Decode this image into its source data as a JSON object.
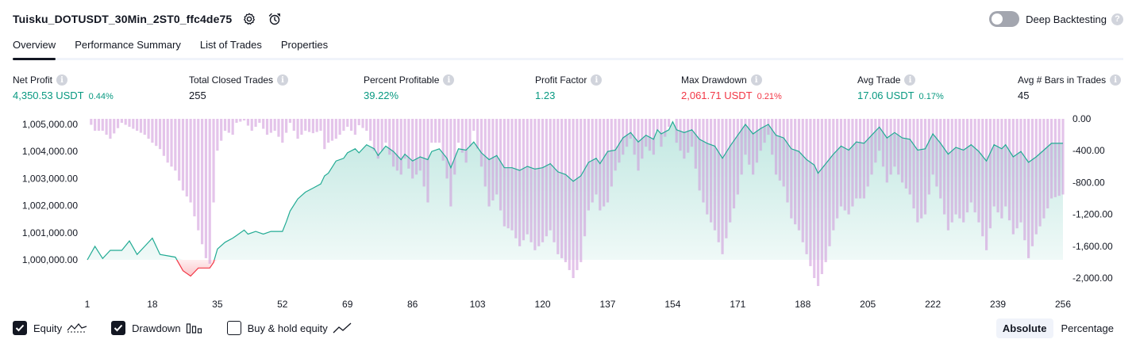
{
  "header": {
    "title": "Tuisku_DOTUSDT_30Min_2ST0_ffc4de75",
    "icons": [
      "gear-icon",
      "alarm-clock-icon"
    ],
    "deep_backtesting_label": "Deep Backtesting",
    "deep_backtesting_enabled": false,
    "help_glyph": "?"
  },
  "tabs": [
    {
      "label": "Overview",
      "active": true
    },
    {
      "label": "Performance Summary",
      "active": false
    },
    {
      "label": "List of Trades",
      "active": false
    },
    {
      "label": "Properties",
      "active": false
    }
  ],
  "metrics": [
    {
      "label": "Net Profit",
      "value": "4,350.53 USDT",
      "pct": "0.44%",
      "color": "#089981"
    },
    {
      "label": "Total Closed Trades",
      "value": "255",
      "pct": "",
      "color": "#131722"
    },
    {
      "label": "Percent Profitable",
      "value": "39.22%",
      "pct": "",
      "color": "#089981"
    },
    {
      "label": "Profit Factor",
      "value": "1.23",
      "pct": "",
      "color": "#089981"
    },
    {
      "label": "Max Drawdown",
      "value": "2,061.71 USDT",
      "pct": "0.21%",
      "color": "#f23645"
    },
    {
      "label": "Avg Trade",
      "value": "17.06 USDT",
      "pct": "0.17%",
      "color": "#089981"
    },
    {
      "label": "Avg # Bars in Trades",
      "value": "45",
      "pct": "",
      "color": "#131722"
    }
  ],
  "info_glyph": "i",
  "chart_data": {
    "type": "line",
    "y_left": {
      "ticks": [
        1000000,
        1001000,
        1002000,
        1003000,
        1004000,
        1005000
      ],
      "tick_labels": [
        "1,000,000.00",
        "1,001,000.00",
        "1,002,000.00",
        "1,003,000.00",
        "1,004,000.00",
        "1,005,000.00"
      ]
    },
    "y_right": {
      "ticks": [
        0,
        -400,
        -800,
        -1200,
        -1600,
        -2000
      ],
      "tick_labels": [
        "0.00",
        "-400.00",
        "-800.00",
        "-1,200.00",
        "-1,600.00",
        "-2,000.00"
      ]
    },
    "x_ticks": [
      1,
      18,
      35,
      52,
      69,
      86,
      103,
      120,
      137,
      154,
      171,
      188,
      205,
      222,
      239,
      256
    ],
    "x_tick_labels": [
      "1",
      "18",
      "35",
      "52",
      "69",
      "86",
      "103",
      "120",
      "137",
      "154",
      "171",
      "188",
      "205",
      "222",
      "239",
      "256"
    ],
    "equity": [
      [
        1,
        1000000
      ],
      [
        3,
        1000500
      ],
      [
        5,
        1000050
      ],
      [
        7,
        1000350
      ],
      [
        10,
        1000350
      ],
      [
        12,
        1000700
      ],
      [
        14,
        1000200
      ],
      [
        16,
        1000500
      ],
      [
        18,
        1000800
      ],
      [
        20,
        1000200
      ],
      [
        22,
        1000150
      ],
      [
        24,
        1000100
      ],
      [
        26,
        999600
      ],
      [
        28,
        999400
      ],
      [
        30,
        999700
      ],
      [
        33,
        999700
      ],
      [
        34,
        999900
      ],
      [
        35,
        1000400
      ],
      [
        37,
        1000650
      ],
      [
        39,
        1000800
      ],
      [
        40,
        1000900
      ],
      [
        42,
        1001100
      ],
      [
        43,
        1000950
      ],
      [
        45,
        1001050
      ],
      [
        47,
        1000950
      ],
      [
        49,
        1001050
      ],
      [
        52,
        1001050
      ],
      [
        53,
        1001400
      ],
      [
        54,
        1001800
      ],
      [
        56,
        1002250
      ],
      [
        58,
        1002500
      ],
      [
        60,
        1002650
      ],
      [
        62,
        1002800
      ],
      [
        63,
        1003100
      ],
      [
        64,
        1003200
      ],
      [
        66,
        1003650
      ],
      [
        68,
        1003750
      ],
      [
        69,
        1003950
      ],
      [
        71,
        1004100
      ],
      [
        72,
        1003950
      ],
      [
        74,
        1004250
      ],
      [
        76,
        1004100
      ],
      [
        77,
        1003850
      ],
      [
        79,
        1004200
      ],
      [
        81,
        1004000
      ],
      [
        83,
        1003700
      ],
      [
        84,
        1003900
      ],
      [
        86,
        1003650
      ],
      [
        88,
        1003800
      ],
      [
        90,
        1003700
      ],
      [
        91,
        1004000
      ],
      [
        93,
        1004100
      ],
      [
        95,
        1003750
      ],
      [
        96,
        1003400
      ],
      [
        98,
        1004100
      ],
      [
        100,
        1004050
      ],
      [
        102,
        1004350
      ],
      [
        104,
        1003950
      ],
      [
        106,
        1003700
      ],
      [
        108,
        1003850
      ],
      [
        110,
        1003400
      ],
      [
        112,
        1003400
      ],
      [
        114,
        1003300
      ],
      [
        116,
        1003450
      ],
      [
        118,
        1003350
      ],
      [
        120,
        1003400
      ],
      [
        122,
        1003550
      ],
      [
        124,
        1003250
      ],
      [
        126,
        1003150
      ],
      [
        128,
        1002900
      ],
      [
        130,
        1003100
      ],
      [
        132,
        1003600
      ],
      [
        134,
        1003750
      ],
      [
        135,
        1003550
      ],
      [
        137,
        1004000
      ],
      [
        139,
        1004050
      ],
      [
        141,
        1004500
      ],
      [
        143,
        1004700
      ],
      [
        145,
        1004350
      ],
      [
        147,
        1004600
      ],
      [
        149,
        1004450
      ],
      [
        150,
        1004800
      ],
      [
        151,
        1004650
      ],
      [
        153,
        1004800
      ],
      [
        154,
        1005100
      ],
      [
        155,
        1004800
      ],
      [
        157,
        1004700
      ],
      [
        159,
        1004800
      ],
      [
        161,
        1004450
      ],
      [
        163,
        1004300
      ],
      [
        165,
        1004200
      ],
      [
        167,
        1003750
      ],
      [
        169,
        1004200
      ],
      [
        171,
        1004600
      ],
      [
        173,
        1005000
      ],
      [
        175,
        1004650
      ],
      [
        177,
        1004850
      ],
      [
        179,
        1005000
      ],
      [
        181,
        1004600
      ],
      [
        183,
        1004500
      ],
      [
        185,
        1004100
      ],
      [
        187,
        1004000
      ],
      [
        189,
        1003700
      ],
      [
        191,
        1003500
      ],
      [
        192,
        1003200
      ],
      [
        194,
        1003550
      ],
      [
        196,
        1003900
      ],
      [
        198,
        1004200
      ],
      [
        200,
        1004050
      ],
      [
        202,
        1004350
      ],
      [
        204,
        1004300
      ],
      [
        206,
        1004600
      ],
      [
        208,
        1004900
      ],
      [
        210,
        1004500
      ],
      [
        212,
        1004700
      ],
      [
        214,
        1004500
      ],
      [
        216,
        1004450
      ],
      [
        218,
        1004050
      ],
      [
        220,
        1004100
      ],
      [
        222,
        1004650
      ],
      [
        224,
        1004300
      ],
      [
        226,
        1003900
      ],
      [
        228,
        1004150
      ],
      [
        230,
        1004050
      ],
      [
        232,
        1004250
      ],
      [
        234,
        1004000
      ],
      [
        236,
        1003650
      ],
      [
        238,
        1004250
      ],
      [
        240,
        1004100
      ],
      [
        241,
        1004250
      ],
      [
        243,
        1003800
      ],
      [
        245,
        1004000
      ],
      [
        247,
        1003600
      ],
      [
        249,
        1003800
      ],
      [
        251,
        1004050
      ],
      [
        253,
        1004300
      ],
      [
        256,
        1004300
      ]
    ],
    "drawdown": [
      [
        1,
        0
      ],
      [
        3,
        -150
      ],
      [
        5,
        -150
      ],
      [
        7,
        -250
      ],
      [
        10,
        -50
      ],
      [
        12,
        -100
      ],
      [
        14,
        -150
      ],
      [
        16,
        -200
      ],
      [
        18,
        -300
      ],
      [
        20,
        -380
      ],
      [
        22,
        -550
      ],
      [
        24,
        -650
      ],
      [
        26,
        -900
      ],
      [
        28,
        -1050
      ],
      [
        30,
        -1400
      ],
      [
        32,
        -1750
      ],
      [
        33,
        -1820
      ],
      [
        34,
        -1050
      ],
      [
        35,
        -400
      ],
      [
        37,
        -150
      ],
      [
        39,
        -200
      ],
      [
        40,
        -50
      ],
      [
        42,
        -20
      ],
      [
        44,
        -150
      ],
      [
        46,
        -50
      ],
      [
        48,
        -200
      ],
      [
        50,
        -150
      ],
      [
        52,
        -300
      ],
      [
        54,
        -50
      ],
      [
        56,
        -250
      ],
      [
        58,
        -150
      ],
      [
        60,
        -180
      ],
      [
        62,
        -150
      ],
      [
        63,
        -380
      ],
      [
        64,
        -300
      ],
      [
        66,
        -250
      ],
      [
        68,
        -150
      ],
      [
        69,
        -100
      ],
      [
        71,
        -200
      ],
      [
        72,
        -80
      ],
      [
        74,
        -150
      ],
      [
        76,
        -400
      ],
      [
        77,
        -500
      ],
      [
        79,
        -300
      ],
      [
        81,
        -600
      ],
      [
        83,
        -700
      ],
      [
        84,
        -500
      ],
      [
        86,
        -750
      ],
      [
        88,
        -650
      ],
      [
        90,
        -1050
      ],
      [
        91,
        -300
      ],
      [
        93,
        -300
      ],
      [
        95,
        -750
      ],
      [
        96,
        -1100
      ],
      [
        98,
        -300
      ],
      [
        100,
        -550
      ],
      [
        102,
        -150
      ],
      [
        104,
        -600
      ],
      [
        106,
        -1100
      ],
      [
        108,
        -950
      ],
      [
        110,
        -1350
      ],
      [
        112,
        -1400
      ],
      [
        114,
        -1600
      ],
      [
        116,
        -1450
      ],
      [
        118,
        -1650
      ],
      [
        120,
        -1550
      ],
      [
        122,
        -1400
      ],
      [
        124,
        -1700
      ],
      [
        126,
        -1800
      ],
      [
        128,
        -2000
      ],
      [
        130,
        -1800
      ],
      [
        132,
        -1150
      ],
      [
        134,
        -950
      ],
      [
        135,
        -1150
      ],
      [
        137,
        -1050
      ],
      [
        139,
        -650
      ],
      [
        141,
        -450
      ],
      [
        143,
        -250
      ],
      [
        145,
        -650
      ],
      [
        147,
        -350
      ],
      [
        149,
        -450
      ],
      [
        150,
        -150
      ],
      [
        151,
        -350
      ],
      [
        153,
        -100
      ],
      [
        154,
        0
      ],
      [
        155,
        -300
      ],
      [
        157,
        -500
      ],
      [
        159,
        -350
      ],
      [
        161,
        -900
      ],
      [
        163,
        -1200
      ],
      [
        165,
        -1400
      ],
      [
        167,
        -1700
      ],
      [
        169,
        -1300
      ],
      [
        171,
        -950
      ],
      [
        173,
        -450
      ],
      [
        175,
        -700
      ],
      [
        177,
        -400
      ],
      [
        179,
        -200
      ],
      [
        181,
        -700
      ],
      [
        183,
        -850
      ],
      [
        185,
        -1250
      ],
      [
        187,
        -1400
      ],
      [
        189,
        -1700
      ],
      [
        191,
        -2000
      ],
      [
        192,
        -2100
      ],
      [
        194,
        -1800
      ],
      [
        196,
        -1400
      ],
      [
        198,
        -1100
      ],
      [
        200,
        -1200
      ],
      [
        202,
        -1000
      ],
      [
        204,
        -1000
      ],
      [
        206,
        -700
      ],
      [
        208,
        -400
      ],
      [
        210,
        -800
      ],
      [
        212,
        -600
      ],
      [
        214,
        -800
      ],
      [
        216,
        -950
      ],
      [
        218,
        -1300
      ],
      [
        220,
        -1200
      ],
      [
        222,
        -700
      ],
      [
        224,
        -1000
      ],
      [
        226,
        -1400
      ],
      [
        228,
        -1200
      ],
      [
        230,
        -1300
      ],
      [
        232,
        -1050
      ],
      [
        234,
        -1300
      ],
      [
        236,
        -1650
      ],
      [
        238,
        -1100
      ],
      [
        240,
        -1250
      ],
      [
        241,
        -1100
      ],
      [
        243,
        -1450
      ],
      [
        245,
        -1300
      ],
      [
        247,
        -1750
      ],
      [
        249,
        -1450
      ],
      [
        251,
        -1250
      ],
      [
        253,
        -1000
      ],
      [
        256,
        -950
      ]
    ]
  },
  "legend": [
    {
      "label": "Equity",
      "checked": true,
      "icon": "equity-line-icon"
    },
    {
      "label": "Drawdown",
      "checked": true,
      "icon": "drawdown-bars-icon"
    },
    {
      "label": "Buy & hold equity",
      "checked": false,
      "icon": "buy-hold-line-icon"
    }
  ],
  "modes": [
    {
      "label": "Absolute",
      "active": true
    },
    {
      "label": "Percentage",
      "active": false
    }
  ],
  "colors": {
    "equity_line": "#22ab94",
    "equity_fill": "#22ab94",
    "equity_negative": "#f23645",
    "drawdown_bar": "#b39ddb",
    "drawdown_bar_top": "#ce93d8"
  }
}
